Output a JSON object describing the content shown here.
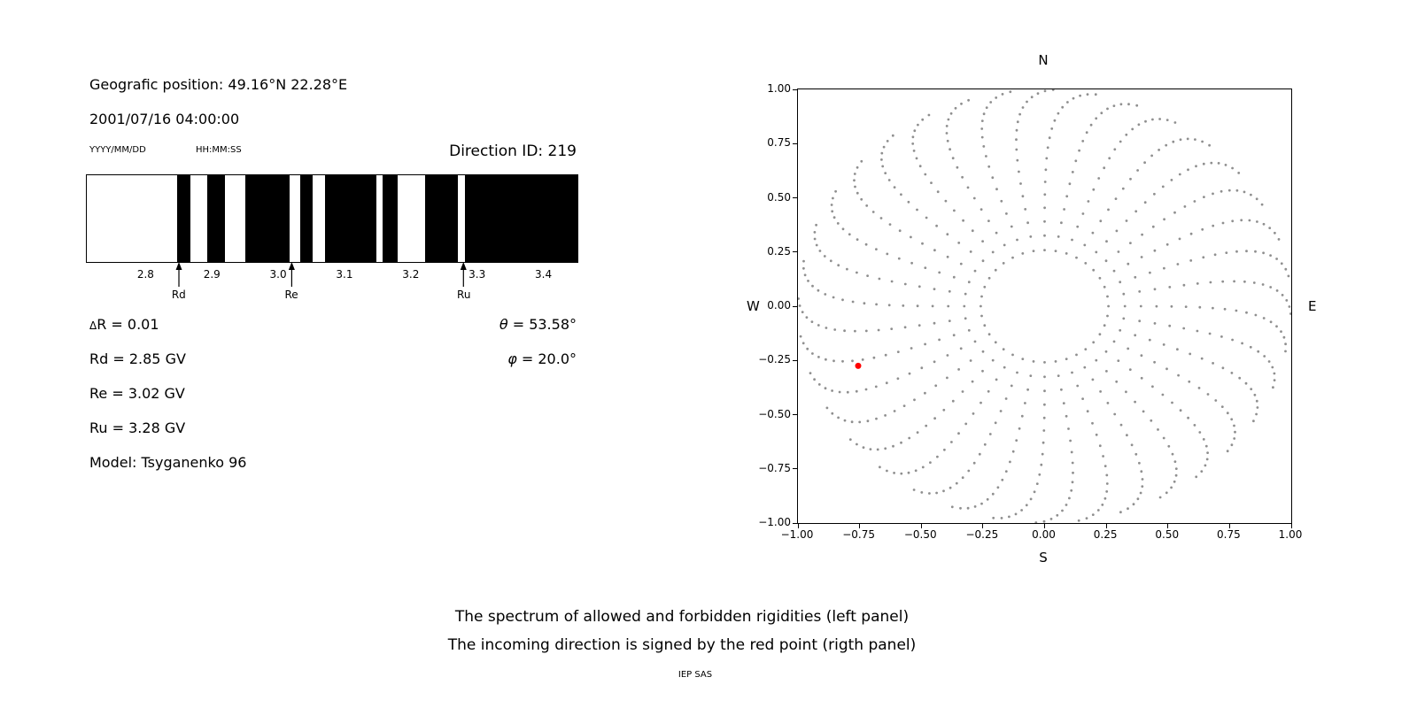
{
  "left_panel": {
    "geographic_position": "Geografic position: 49.16°N 22.28°E",
    "datetime": "2001/07/16 04:00:00",
    "date_format_hint": "YYYY/MM/DD",
    "time_format_hint": "HH:MM:SS",
    "direction_id": "Direction ID: 219",
    "delta_r": {
      "symbol": "Δ",
      "text": "R = 0.01"
    },
    "rd": "Rd = 2.85 GV",
    "re": "Re = 3.02 GV",
    "ru": "Ru = 3.28 GV",
    "model": "Model: Tsyganenko 96",
    "theta": {
      "symbol": "θ",
      "text": " = 53.58°"
    },
    "phi": {
      "symbol": "φ",
      "text": " = 20.0°"
    }
  },
  "caption": {
    "line1": "The spectrum of allowed and forbidden rigidities (left panel)",
    "line2": "The incoming direction is signed by the red point (rigth panel)",
    "credit": "IEP SAS"
  },
  "chart_data": [
    {
      "type": "heatmap",
      "title": "Spectrum of allowed (white) and forbidden (black) rigidities",
      "x_range": [
        2.71,
        3.45
      ],
      "x_ticks": [
        "2.8",
        "2.9",
        "3.0",
        "3.1",
        "3.2",
        "3.3",
        "3.4"
      ],
      "x_tick_values": [
        2.8,
        2.9,
        3.0,
        3.1,
        3.2,
        3.3,
        3.4
      ],
      "forbidden_bands_gv": [
        [
          2.846,
          2.866
        ],
        [
          2.892,
          2.918
        ],
        [
          2.949,
          3.016
        ],
        [
          3.032,
          3.051
        ],
        [
          3.069,
          3.147
        ],
        [
          3.156,
          3.179
        ],
        [
          3.22,
          3.27
        ],
        [
          3.28,
          3.45
        ]
      ],
      "markers": [
        {
          "label": "Rd",
          "value_gv": 2.85
        },
        {
          "label": "Re",
          "value_gv": 3.02
        },
        {
          "label": "Ru",
          "value_gv": 3.28
        }
      ]
    },
    {
      "type": "scatter",
      "title": "Incoming direction map",
      "xlim": [
        -1.0,
        1.0
      ],
      "ylim": [
        -1.0,
        1.0
      ],
      "x_tick_labels": [
        "−1.00",
        "−0.75",
        "−0.50",
        "−0.25",
        "0.00",
        "0.25",
        "0.50",
        "0.75",
        "1.00"
      ],
      "x_tick_values": [
        -1.0,
        -0.75,
        -0.5,
        -0.25,
        0.0,
        0.25,
        0.5,
        0.75,
        1.0
      ],
      "y_tick_labels": [
        "1.00",
        "0.75",
        "0.50",
        "0.25",
        "0.00",
        "−0.25",
        "−0.50",
        "−0.75",
        "−1.00"
      ],
      "y_tick_values": [
        1.0,
        0.75,
        0.5,
        0.25,
        0.0,
        -0.25,
        -0.5,
        -0.75,
        -1.0
      ],
      "compass": {
        "top": "N",
        "right": "E",
        "bottom": "S",
        "left": "W"
      },
      "gray_dots": {
        "azimuth_start_deg": 0,
        "azimuth_step_deg": 10,
        "azimuth_count": 36,
        "zenith_start_deg": 15,
        "zenith_end_deg": 87,
        "points_per_ray": 19,
        "radius_rule": "r = sin(zenith)",
        "curvature_deg": 12,
        "color": "#8f8f8f",
        "dot_radius_px": 1.4
      },
      "red_point": {
        "x": -0.756,
        "y": -0.275,
        "color": "#ff0000"
      }
    }
  ]
}
